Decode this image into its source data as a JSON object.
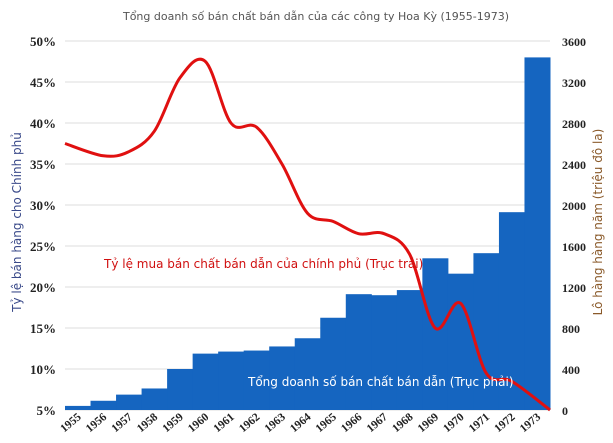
{
  "chart_data": {
    "type": "bar",
    "title": "Tổng doanh số bán chất bán dẫn của các công ty Hoa Kỳ (1955-1973)",
    "ylabel_left": "Tỷ lệ bán hàng cho Chính phủ",
    "ylabel_right": "Lô hàng hàng năm (triệu đô la)",
    "categories": [
      "1955",
      "1956",
      "1957",
      "1958",
      "1959",
      "1960",
      "1961",
      "1962",
      "1963",
      "1964",
      "1965",
      "1966",
      "1967",
      "1968",
      "1969",
      "1970",
      "1971",
      "1972",
      "1973"
    ],
    "left_axis": {
      "ylim": [
        5,
        50
      ],
      "ticks": [
        "5%",
        "10%",
        "15%",
        "20%",
        "25%",
        "30%",
        "35%",
        "40%",
        "45%",
        "50%"
      ],
      "tick_values": [
        5,
        10,
        15,
        20,
        25,
        30,
        35,
        40,
        45,
        50
      ]
    },
    "right_axis": {
      "ylim": [
        0,
        3600
      ],
      "ticks": [
        "0",
        "400",
        "800",
        "1200",
        "1600",
        "2000",
        "2400",
        "2800",
        "3200",
        "3600"
      ],
      "tick_values": [
        0,
        400,
        800,
        1200,
        1600,
        2000,
        2400,
        2800,
        3200,
        3600
      ]
    },
    "series": [
      {
        "name": "Tổng doanh số bán chất bán dẫn (Trục phải)",
        "type": "bar",
        "axis": "right",
        "color": "#1565c0",
        "values": [
          40,
          90,
          150,
          210,
          400,
          550,
          570,
          580,
          620,
          700,
          900,
          1130,
          1120,
          1170,
          1480,
          1330,
          1530,
          1930,
          3440
        ]
      },
      {
        "name": "Tỷ lệ mua bán chất bán dẫn của chính phủ (Trục trái)",
        "type": "line",
        "axis": "left",
        "color": "#e01010",
        "values": [
          37.5,
          36.0,
          36.5,
          39.0,
          45.5,
          47.5,
          40.0,
          39.5,
          35.0,
          29.0,
          28.0,
          26.5,
          26.5,
          24.0,
          15.0,
          18.0,
          9.5,
          8.5,
          5.0
        ]
      }
    ],
    "annotations": {
      "line_label": "Tỷ lệ mua bán chất bán dẫn của chính phủ (Trục trái)",
      "bar_label": "Tổng doanh số bán chất bán dẫn (Trục phải)"
    },
    "grid": true,
    "legend": "none"
  }
}
